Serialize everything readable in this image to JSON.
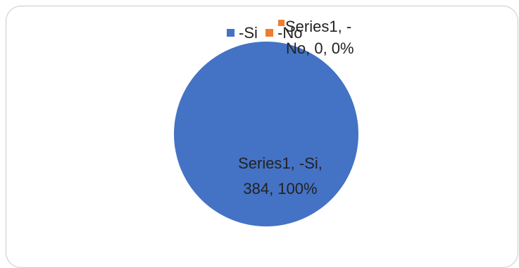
{
  "chart_data": {
    "type": "pie",
    "categories": [
      "-Si",
      "-No"
    ],
    "series": [
      {
        "name": "Series1",
        "values": [
          384,
          0
        ],
        "percents": [
          "100%",
          "0%"
        ],
        "colors": [
          "#4472C4",
          "#ED7D31"
        ]
      }
    ],
    "legend": {
      "placement": "top",
      "items": [
        {
          "label": "-Si",
          "color": "#4472C4"
        },
        {
          "label": "-No",
          "color": "#ED7D31"
        }
      ]
    },
    "data_labels": [
      {
        "line1": "Series1, -Si,",
        "line2": "384, 100%"
      },
      {
        "line1": "Series1, -",
        "line2": "No, 0, 0%"
      }
    ]
  }
}
